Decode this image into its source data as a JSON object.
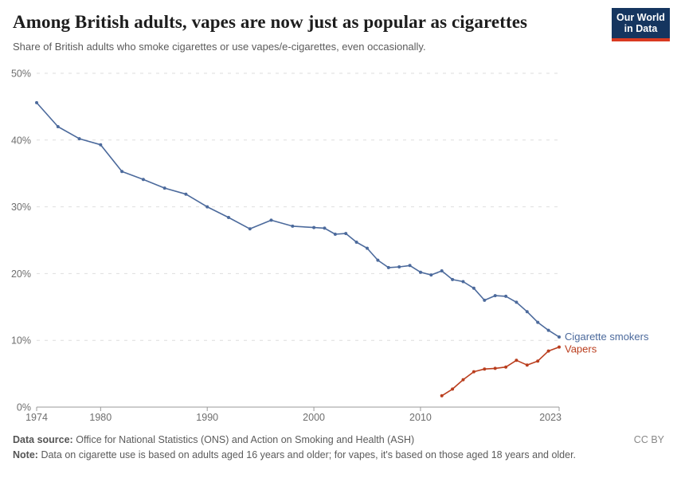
{
  "header": {
    "title": "Among British adults, vapes are now just as popular as cigarettes",
    "subtitle": "Share of British adults who smoke cigarettes or use vapes/e-cigarettes, even occasionally.",
    "logo": {
      "line1": "Our World",
      "line2": "in Data",
      "background_color": "#15355F",
      "accent_color": "#D93A21"
    }
  },
  "chart_data": {
    "type": "line",
    "title": "Among British adults, vapes are now just as popular as cigarettes",
    "subtitle": "Share of British adults who smoke cigarettes or use vapes/e-cigarettes, even occasionally.",
    "x_axis": {
      "min": 1974,
      "max": 2023,
      "ticks": [
        1974,
        1980,
        1990,
        2000,
        2010,
        2023
      ]
    },
    "y_axis": {
      "min": 0,
      "max": 50,
      "tick_interval": 10,
      "unit": "%",
      "tick_labels": [
        "0%",
        "10%",
        "20%",
        "30%",
        "40%",
        "50%"
      ],
      "grid": "dashed-horizontal"
    },
    "legend_position": "end-of-line",
    "series": [
      {
        "name": "Cigarette smokers",
        "color": "#4C6A9C",
        "points": [
          [
            1974,
            45.6
          ],
          [
            1976,
            42.0
          ],
          [
            1978,
            40.2
          ],
          [
            1980,
            39.3
          ],
          [
            1982,
            35.3
          ],
          [
            1984,
            34.1
          ],
          [
            1986,
            32.8
          ],
          [
            1988,
            31.9
          ],
          [
            1990,
            30.0
          ],
          [
            1992,
            28.4
          ],
          [
            1994,
            26.7
          ],
          [
            1996,
            28.0
          ],
          [
            1998,
            27.1
          ],
          [
            2000,
            26.9
          ],
          [
            2001,
            26.8
          ],
          [
            2002,
            25.9
          ],
          [
            2003,
            26.0
          ],
          [
            2004,
            24.7
          ],
          [
            2005,
            23.8
          ],
          [
            2006,
            22.0
          ],
          [
            2007,
            20.9
          ],
          [
            2008,
            21.0
          ],
          [
            2009,
            21.2
          ],
          [
            2010,
            20.2
          ],
          [
            2011,
            19.8
          ],
          [
            2012,
            20.4
          ],
          [
            2013,
            19.1
          ],
          [
            2014,
            18.8
          ],
          [
            2015,
            17.8
          ],
          [
            2016,
            16.0
          ],
          [
            2017,
            16.7
          ],
          [
            2018,
            16.6
          ],
          [
            2019,
            15.7
          ],
          [
            2020,
            14.3
          ],
          [
            2021,
            12.7
          ],
          [
            2022,
            11.5
          ],
          [
            2023,
            10.5
          ]
        ],
        "label_offset_y": 4
      },
      {
        "name": "Vapers",
        "color": "#BA3E1E",
        "points": [
          [
            2012,
            1.7
          ],
          [
            2013,
            2.7
          ],
          [
            2014,
            4.1
          ],
          [
            2015,
            5.3
          ],
          [
            2016,
            5.7
          ],
          [
            2017,
            5.8
          ],
          [
            2018,
            6.0
          ],
          [
            2019,
            7.0
          ],
          [
            2020,
            6.3
          ],
          [
            2021,
            6.9
          ],
          [
            2022,
            8.4
          ],
          [
            2023,
            9.0
          ]
        ],
        "label_offset_y": 7
      }
    ]
  },
  "footer": {
    "data_source_label": "Data source:",
    "data_source_text": "Office for National Statistics (ONS) and Action on Smoking and Health (ASH)",
    "note_label": "Note:",
    "note_text": "Data on cigarette use is based on adults aged 16 years and older; for vapes, it's based on those aged 18 years and older.",
    "license": "CC BY"
  }
}
